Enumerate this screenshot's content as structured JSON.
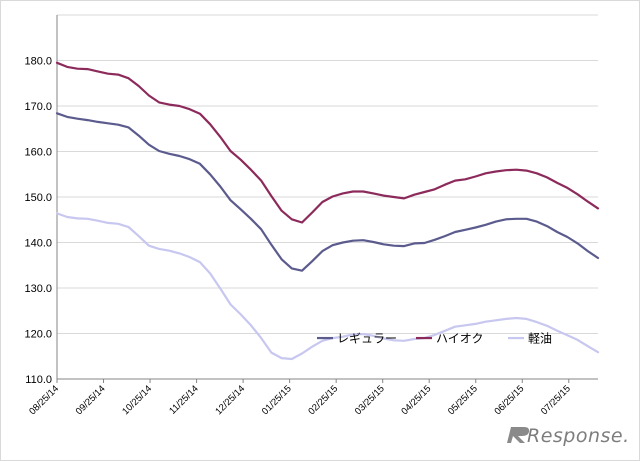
{
  "chart_data": {
    "type": "line",
    "title": "",
    "xlabel": "",
    "ylabel": "",
    "ylim": [
      110,
      190
    ],
    "yticks": [
      "110.0",
      "120.0",
      "130.0",
      "140.0",
      "150.0",
      "160.0",
      "170.0",
      "180.0"
    ],
    "xticks": [
      "08/25/14",
      "09/25/14",
      "10/25/14",
      "11/25/14",
      "12/25/14",
      "01/25/15",
      "02/25/15",
      "03/25/15",
      "04/25/15",
      "05/25/15",
      "06/25/15",
      "07/25/15"
    ],
    "grid": true,
    "legend_position": "bottom-right",
    "series": [
      {
        "name": "レギュラー",
        "color": "#5b5b8e",
        "values": [
          168.4,
          167.6,
          167.2,
          166.9,
          166.5,
          166.2,
          165.9,
          165.3,
          163.5,
          161.5,
          160.1,
          159.5,
          159.0,
          158.3,
          157.3,
          155.0,
          152.3,
          149.3,
          147.3,
          145.2,
          142.9,
          139.5,
          136.3,
          134.3,
          133.8,
          135.9,
          138.1,
          139.4,
          140.0,
          140.4,
          140.5,
          140.1,
          139.6,
          139.3,
          139.2,
          139.8,
          139.9,
          140.6,
          141.4,
          142.3,
          142.8,
          143.3,
          143.9,
          144.6,
          145.1,
          145.2,
          145.2,
          144.6,
          143.6,
          142.3,
          141.2,
          139.8,
          138.1,
          136.6
        ]
      },
      {
        "name": "ハイオク",
        "color": "#8c2b5b",
        "values": [
          179.5,
          178.6,
          178.2,
          178.1,
          177.6,
          177.1,
          176.9,
          176.1,
          174.4,
          172.3,
          170.8,
          170.3,
          170.0,
          169.3,
          168.3,
          166.0,
          163.2,
          160.1,
          158.2,
          156.0,
          153.6,
          150.2,
          147.0,
          145.1,
          144.4,
          146.6,
          148.9,
          150.1,
          150.8,
          151.2,
          151.2,
          150.8,
          150.3,
          150.0,
          149.7,
          150.5,
          151.1,
          151.7,
          152.7,
          153.6,
          153.9,
          154.5,
          155.2,
          155.6,
          155.9,
          156.0,
          155.8,
          155.2,
          154.3,
          153.1,
          152.0,
          150.6,
          149.0,
          147.5
        ]
      },
      {
        "name": "軽油",
        "color": "#c7c7f0",
        "values": [
          146.4,
          145.6,
          145.3,
          145.2,
          144.8,
          144.3,
          144.1,
          143.4,
          141.4,
          139.3,
          138.6,
          138.2,
          137.6,
          136.8,
          135.7,
          133.2,
          129.9,
          126.4,
          124.2,
          121.8,
          119.0,
          115.8,
          114.6,
          114.4,
          115.6,
          117.1,
          118.4,
          119.0,
          119.3,
          119.8,
          119.9,
          119.5,
          118.9,
          118.5,
          118.4,
          118.8,
          119.0,
          119.7,
          120.6,
          121.5,
          121.8,
          122.1,
          122.6,
          122.9,
          123.2,
          123.4,
          123.2,
          122.5,
          121.7,
          120.6,
          119.6,
          118.6,
          117.2,
          115.9
        ]
      }
    ]
  },
  "watermark": {
    "text": "Response."
  }
}
